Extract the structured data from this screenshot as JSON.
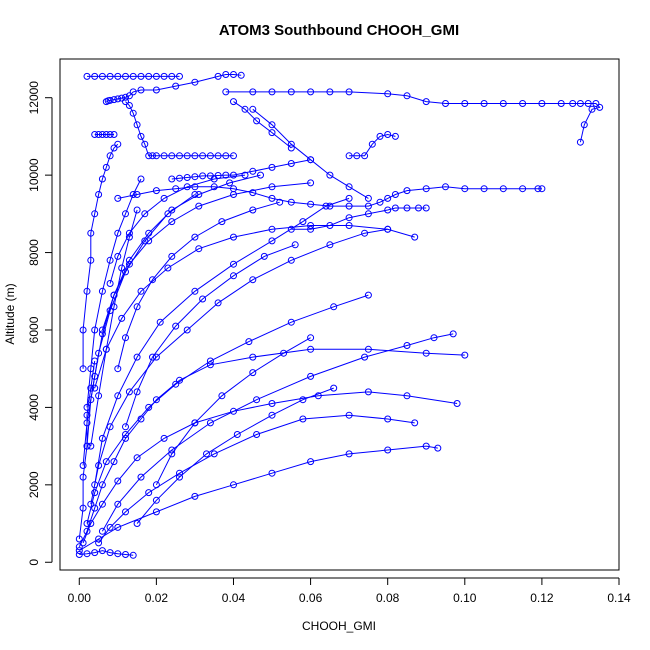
{
  "chart_data": {
    "type": "scatter",
    "title": "ATOM3 Southbound CHOOH_GMI",
    "xlabel": "CHOOH_GMI",
    "ylabel": "Altitude (m)",
    "xlim": [
      -0.005,
      0.14
    ],
    "ylim": [
      -200,
      13000
    ],
    "xticks": [
      "0.00",
      "0.02",
      "0.04",
      "0.06",
      "0.08",
      "0.10",
      "0.12",
      "0.14"
    ],
    "xtick_values": [
      0,
      0.02,
      0.04,
      0.06,
      0.08,
      0.1,
      0.12,
      0.14
    ],
    "yticks": [
      "0",
      "2000",
      "4000",
      "6000",
      "8000",
      "10000",
      "12000"
    ],
    "ytick_values": [
      0,
      2000,
      4000,
      6000,
      8000,
      10000,
      12000
    ],
    "grid": false,
    "legend": "none",
    "color": "#0000ff",
    "series": [
      {
        "x": [
          0.002,
          0.004,
          0.006,
          0.008,
          0.01,
          0.012,
          0.014,
          0.016,
          0.018,
          0.02,
          0.022,
          0.024,
          0.026
        ],
        "y": [
          12550,
          12550,
          12550,
          12550,
          12550,
          12550,
          12550,
          12550,
          12550,
          12550,
          12550,
          12550,
          12550
        ]
      },
      {
        "x": [
          0.007,
          0.0075,
          0.008,
          0.009,
          0.01,
          0.011,
          0.012,
          0.013,
          0.014,
          0.016,
          0.02,
          0.025,
          0.03,
          0.036,
          0.038,
          0.04,
          0.042
        ],
        "y": [
          11900,
          11920,
          11930,
          11950,
          11970,
          11990,
          12010,
          12050,
          12150,
          12200,
          12200,
          12300,
          12400,
          12550,
          12600,
          12600,
          12580
        ]
      },
      {
        "x": [
          0.038,
          0.045,
          0.05,
          0.055,
          0.06,
          0.065,
          0.07,
          0.08,
          0.085,
          0.09,
          0.095,
          0.1,
          0.105,
          0.11,
          0.115,
          0.12,
          0.125,
          0.128,
          0.13,
          0.132,
          0.134,
          0.135,
          0.133,
          0.131,
          0.13
        ],
        "y": [
          12150,
          12150,
          12150,
          12150,
          12150,
          12150,
          12150,
          12100,
          12050,
          11900,
          11850,
          11850,
          11850,
          11850,
          11850,
          11850,
          11850,
          11850,
          11850,
          11850,
          11850,
          11750,
          11700,
          11300,
          10850
        ]
      },
      {
        "x": [
          0.012,
          0.013,
          0.014,
          0.015,
          0.016,
          0.017,
          0.018,
          0.019,
          0.02,
          0.022,
          0.024,
          0.026,
          0.028,
          0.03,
          0.032,
          0.034,
          0.036,
          0.038,
          0.04
        ],
        "y": [
          11900,
          11800,
          11600,
          11300,
          11000,
          10800,
          10500,
          10500,
          10500,
          10500,
          10500,
          10500,
          10500,
          10500,
          10500,
          10500,
          10500,
          10500,
          10500
        ]
      },
      {
        "x": [
          0.004,
          0.005,
          0.006,
          0.007,
          0.008,
          0.009
        ],
        "y": [
          11050,
          11050,
          11050,
          11050,
          11050,
          11050
        ]
      },
      {
        "x": [
          0.01,
          0.015,
          0.02,
          0.025,
          0.03,
          0.035,
          0.04,
          0.045,
          0.05,
          0.055,
          0.06,
          0.065,
          0.07,
          0.075,
          0.078,
          0.08,
          0.082,
          0.085,
          0.09,
          0.095,
          0.1,
          0.105,
          0.11,
          0.115,
          0.119,
          0.12
        ],
        "y": [
          9400,
          9500,
          9600,
          9650,
          9700,
          9700,
          9650,
          9550,
          9400,
          9300,
          9250,
          9200,
          9200,
          9200,
          9300,
          9400,
          9500,
          9600,
          9650,
          9700,
          9650,
          9650,
          9650,
          9650,
          9650,
          9650
        ]
      },
      {
        "x": [
          0.024,
          0.026,
          0.028,
          0.03,
          0.032,
          0.034,
          0.036,
          0.038,
          0.04,
          0.045,
          0.05,
          0.055,
          0.06
        ],
        "y": [
          9900,
          9920,
          9940,
          9960,
          9980,
          9980,
          9990,
          10000,
          10000,
          10100,
          10200,
          10300,
          10400
        ]
      },
      {
        "x": [
          0.055,
          0.06,
          0.065,
          0.07,
          0.075,
          0.08,
          0.082,
          0.085,
          0.088,
          0.09
        ],
        "y": [
          8600,
          8600,
          8700,
          8900,
          9000,
          9100,
          9150,
          9150,
          9150,
          9150
        ]
      },
      {
        "x": [
          0.07,
          0.072,
          0.074,
          0.076,
          0.078,
          0.08,
          0.082
        ],
        "y": [
          10500,
          10500,
          10500,
          10800,
          11000,
          11050,
          11000
        ]
      },
      {
        "x": [
          0.0,
          0.002,
          0.004,
          0.006,
          0.008,
          0.01,
          0.012,
          0.014
        ],
        "y": [
          200,
          220,
          250,
          300,
          250,
          220,
          200,
          180
        ]
      },
      {
        "x": [
          0.0,
          0.002,
          0.004,
          0.006,
          0.009,
          0.012,
          0.016,
          0.02,
          0.026,
          0.034,
          0.045,
          0.06,
          0.075,
          0.09,
          0.1
        ],
        "y": [
          400,
          800,
          1400,
          2000,
          2600,
          3200,
          3700,
          4200,
          4700,
          5100,
          5300,
          5500,
          5500,
          5400,
          5350
        ]
      },
      {
        "x": [
          0.0,
          0.005,
          0.01,
          0.02,
          0.03,
          0.04,
          0.05,
          0.06,
          0.07,
          0.08,
          0.09,
          0.093
        ],
        "y": [
          300,
          600,
          900,
          1300,
          1700,
          2000,
          2300,
          2600,
          2800,
          2900,
          3000,
          2950
        ]
      },
      {
        "x": [
          0.001,
          0.003,
          0.006,
          0.01,
          0.015,
          0.022,
          0.03,
          0.04,
          0.05,
          0.062,
          0.075,
          0.085,
          0.098
        ],
        "y": [
          500,
          1000,
          1500,
          2100,
          2700,
          3200,
          3600,
          3900,
          4100,
          4300,
          4400,
          4300,
          4100
        ]
      },
      {
        "x": [
          0.002,
          0.004,
          0.007,
          0.012,
          0.018,
          0.025,
          0.034,
          0.044,
          0.055,
          0.066,
          0.075
        ],
        "y": [
          1000,
          1800,
          2600,
          3300,
          4000,
          4600,
          5200,
          5700,
          6200,
          6600,
          6900
        ]
      },
      {
        "x": [
          0.003,
          0.005,
          0.008,
          0.013,
          0.02,
          0.028,
          0.036,
          0.045,
          0.055,
          0.065,
          0.074,
          0.08
        ],
        "y": [
          1500,
          2500,
          3500,
          4400,
          5300,
          6000,
          6700,
          7300,
          7800,
          8200,
          8500,
          8600
        ]
      },
      {
        "x": [
          0.004,
          0.006,
          0.01,
          0.015,
          0.021,
          0.03,
          0.04,
          0.05,
          0.058,
          0.064,
          0.07
        ],
        "y": [
          2000,
          3200,
          4300,
          5300,
          6200,
          7000,
          7700,
          8300,
          8800,
          9200,
          9400
        ]
      },
      {
        "x": [
          0.001,
          0.002,
          0.004,
          0.006,
          0.009,
          0.013,
          0.018,
          0.024,
          0.031,
          0.039,
          0.047
        ],
        "y": [
          2500,
          3600,
          4800,
          5900,
          6900,
          7800,
          8500,
          9100,
          9500,
          9800,
          10000
        ]
      },
      {
        "x": [
          0.002,
          0.003,
          0.005,
          0.008,
          0.012,
          0.017,
          0.023,
          0.03
        ],
        "y": [
          3000,
          4200,
          5400,
          6500,
          7500,
          8300,
          9000,
          9500
        ]
      },
      {
        "x": [
          0.005,
          0.008,
          0.012,
          0.018,
          0.026,
          0.035,
          0.046,
          0.058,
          0.07,
          0.08,
          0.087
        ],
        "y": [
          500,
          900,
          1300,
          1800,
          2300,
          2800,
          3300,
          3700,
          3800,
          3700,
          3600
        ]
      },
      {
        "x": [
          0.006,
          0.01,
          0.016,
          0.024,
          0.034,
          0.046,
          0.06,
          0.074,
          0.085,
          0.092,
          0.097
        ],
        "y": [
          800,
          1500,
          2200,
          2900,
          3600,
          4200,
          4800,
          5300,
          5600,
          5800,
          5900
        ]
      },
      {
        "x": [
          0.004,
          0.007,
          0.011,
          0.016,
          0.023,
          0.031,
          0.04,
          0.05,
          0.06,
          0.07,
          0.08,
          0.087
        ],
        "y": [
          4500,
          5500,
          6300,
          7000,
          7600,
          8100,
          8400,
          8600,
          8700,
          8700,
          8600,
          8400
        ]
      },
      {
        "x": [
          0.006,
          0.009,
          0.013,
          0.018,
          0.024,
          0.031,
          0.04,
          0.05,
          0.06
        ],
        "y": [
          6000,
          6900,
          7700,
          8300,
          8800,
          9200,
          9500,
          9700,
          9800
        ]
      },
      {
        "x": [
          0.008,
          0.01,
          0.013,
          0.017,
          0.022,
          0.028,
          0.035,
          0.043
        ],
        "y": [
          7200,
          7900,
          8500,
          9000,
          9400,
          9700,
          9900,
          10000
        ]
      },
      {
        "x": [
          0.01,
          0.012,
          0.015,
          0.019,
          0.024,
          0.03,
          0.037,
          0.045,
          0.052
        ],
        "y": [
          5000,
          5800,
          6600,
          7300,
          7900,
          8400,
          8800,
          9100,
          9300
        ]
      },
      {
        "x": [
          0.012,
          0.015,
          0.019,
          0.025,
          0.032,
          0.04,
          0.048,
          0.056
        ],
        "y": [
          3500,
          4400,
          5300,
          6100,
          6800,
          7400,
          7900,
          8200
        ]
      },
      {
        "x": [
          0.02,
          0.024,
          0.03,
          0.037,
          0.045,
          0.053,
          0.06
        ],
        "y": [
          2000,
          2800,
          3600,
          4300,
          4900,
          5400,
          5800
        ]
      },
      {
        "x": [
          0.015,
          0.02,
          0.026,
          0.033,
          0.041,
          0.05,
          0.058,
          0.066
        ],
        "y": [
          1000,
          1600,
          2200,
          2800,
          3300,
          3800,
          4200,
          4500
        ]
      },
      {
        "x": [
          0.001,
          0.001,
          0.002,
          0.003,
          0.003,
          0.004,
          0.005,
          0.006,
          0.007,
          0.008,
          0.009,
          0.01
        ],
        "y": [
          5000,
          6000,
          7000,
          7800,
          8500,
          9000,
          9500,
          9900,
          10200,
          10500,
          10700,
          10800
        ]
      },
      {
        "x": [
          0.002,
          0.003,
          0.004,
          0.006,
          0.008,
          0.01,
          0.012,
          0.014,
          0.016
        ],
        "y": [
          4000,
          5000,
          6000,
          7000,
          7800,
          8500,
          9000,
          9500,
          9900
        ]
      },
      {
        "x": [
          0.003,
          0.005,
          0.007,
          0.009,
          0.011,
          0.013,
          0.015
        ],
        "y": [
          3000,
          4300,
          5500,
          6600,
          7600,
          8400,
          9100
        ]
      },
      {
        "x": [
          0.0,
          0.001,
          0.001,
          0.002,
          0.002,
          0.003,
          0.004
        ],
        "y": [
          600,
          1400,
          2200,
          3000,
          3800,
          4500,
          5200
        ]
      },
      {
        "x": [
          0.045,
          0.05,
          0.055,
          0.06,
          0.065,
          0.07,
          0.075
        ],
        "y": [
          11700,
          11300,
          10800,
          10400,
          10000,
          9700,
          9400
        ]
      },
      {
        "x": [
          0.04,
          0.043,
          0.046,
          0.05,
          0.055
        ],
        "y": [
          11900,
          11700,
          11400,
          11100,
          10700
        ]
      }
    ]
  }
}
